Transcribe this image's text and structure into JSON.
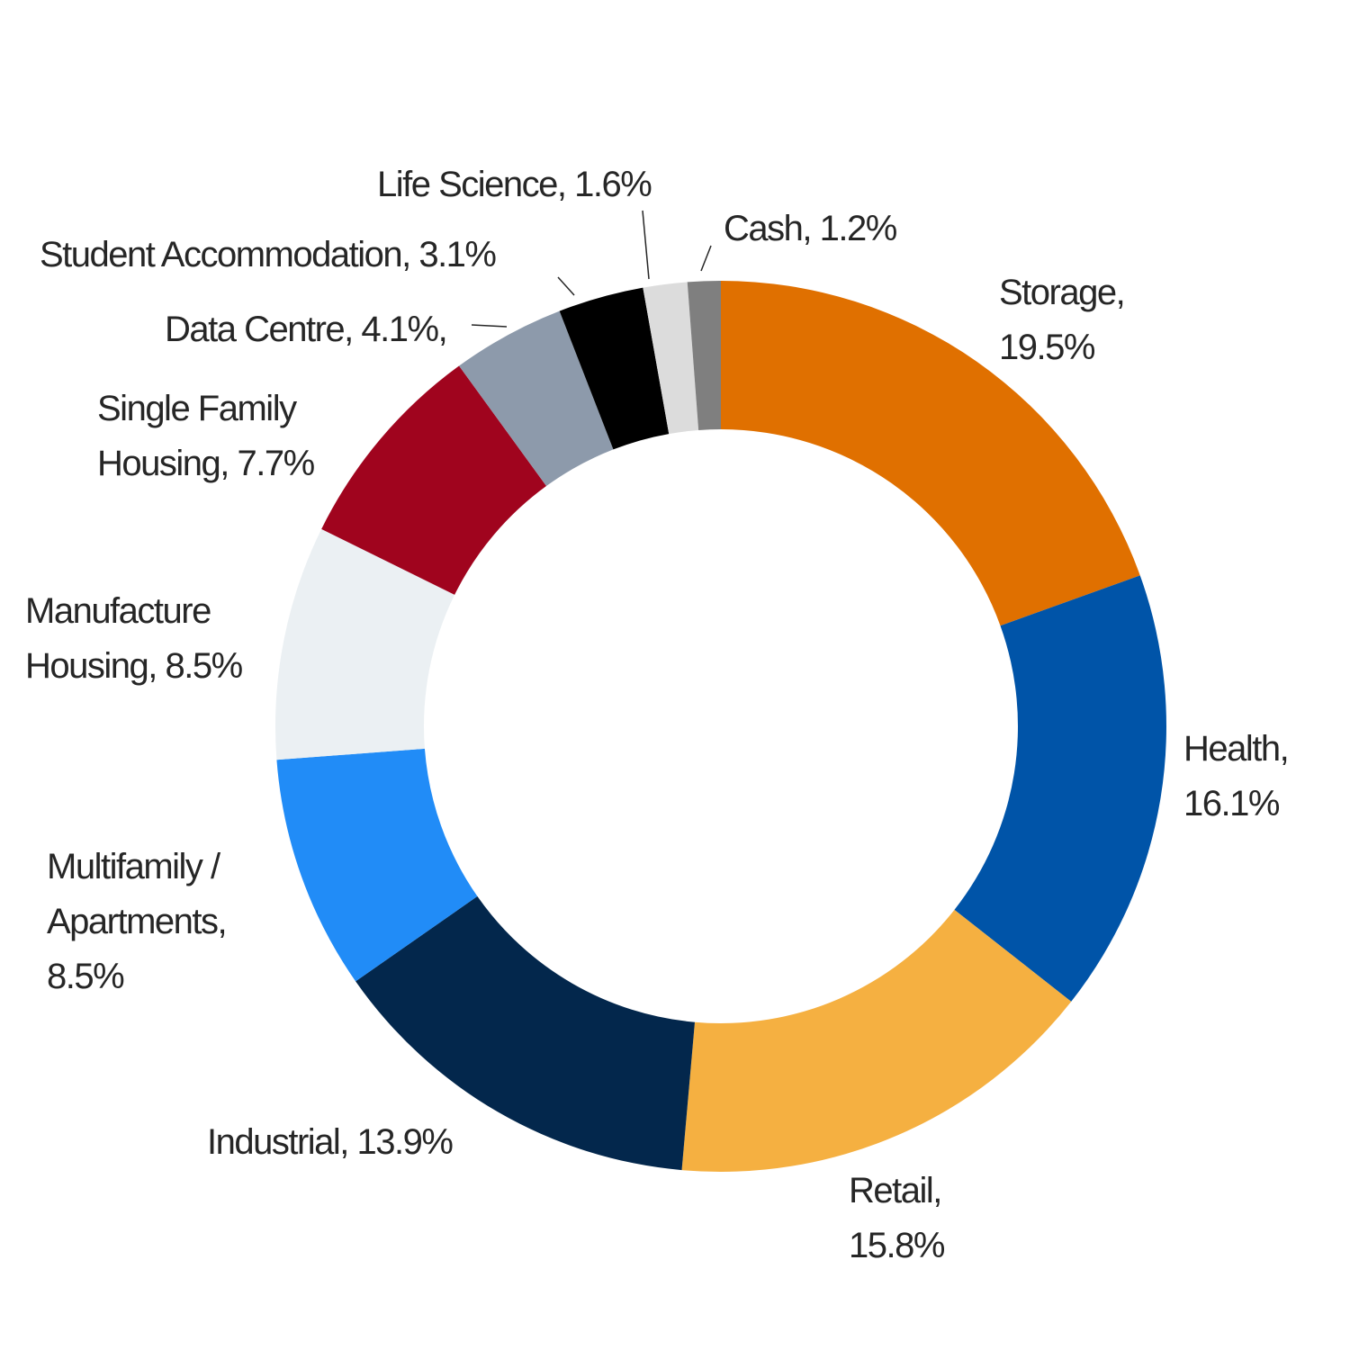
{
  "chart_data": {
    "type": "pie",
    "variant": "donut",
    "title": "",
    "start_angle_deg": 0,
    "direction": "clockwise",
    "slices": [
      {
        "label": "Storage",
        "value": 19.5,
        "color": "#E07000",
        "text_lines": [
          "Storage,",
          "19.5%"
        ]
      },
      {
        "label": "Health",
        "value": 16.1,
        "color": "#0054A8",
        "text_lines": [
          "Health,",
          "16.1%"
        ]
      },
      {
        "label": "Retail",
        "value": 15.8,
        "color": "#F5B041",
        "text_lines": [
          "Retail,",
          "15.8%"
        ]
      },
      {
        "label": "Industrial",
        "value": 13.9,
        "color": "#03274C",
        "text_lines": [
          "Industrial, 13.9%"
        ]
      },
      {
        "label": "Multifamily / Apartments",
        "value": 8.5,
        "color": "#218CF7",
        "text_lines": [
          "Multifamily /",
          "Apartments,",
          "8.5%"
        ]
      },
      {
        "label": "Manufacture Housing",
        "value": 8.5,
        "color": "#EBF0F3",
        "text_lines": [
          "Manufacture",
          "Housing, 8.5%"
        ]
      },
      {
        "label": "Single Family Housing",
        "value": 7.7,
        "color": "#A0041E",
        "text_lines": [
          "Single Family",
          "Housing, 7.7%"
        ]
      },
      {
        "label": "Data Centre",
        "value": 4.1,
        "color": "#8D9AAB",
        "text_lines": [
          "Data Centre, 4.1%,"
        ]
      },
      {
        "label": "Student Accommodation",
        "value": 3.1,
        "color": "#000000",
        "text_lines": [
          "Student Accommodation, 3.1%"
        ]
      },
      {
        "label": "Life Science",
        "value": 1.6,
        "color": "#DCDCDC",
        "text_lines": [
          "Life Science, 1.6%"
        ]
      },
      {
        "label": "Cash",
        "value": 1.2,
        "color": "#7F7F7F",
        "text_lines": [
          "Cash, 1.2%"
        ]
      }
    ]
  }
}
